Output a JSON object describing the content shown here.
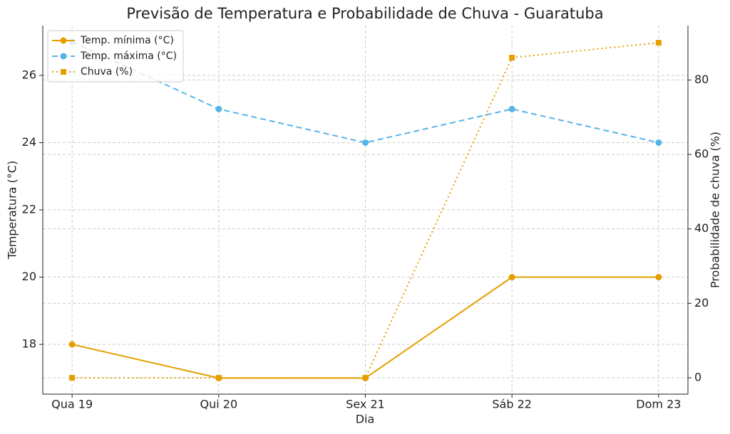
{
  "chart_data": {
    "type": "line",
    "title": "Previsão de Temperatura e Probabilidade de Chuva - Guaratuba",
    "x_label": "Dia",
    "y_label": "Temperatura (°C)",
    "y2_label": "Probabilidade de chuva (%)",
    "categories": [
      "Qua 19",
      "Qui 20",
      "Sex 21",
      "Sáb 22",
      "Dom 23"
    ],
    "series": [
      {
        "name": "Temp. mínima (°C)",
        "color": "#e69f00",
        "style": "solid",
        "marker": "circle",
        "values": [
          18,
          17,
          17,
          20,
          20
        ]
      },
      {
        "name": "Temp. máxima (°C)",
        "color": "#56b4e9",
        "style": "dashed",
        "marker": "circle",
        "values": [
          27,
          25,
          24,
          25,
          24
        ]
      },
      {
        "name": "Chuva (%)",
        "color": "#e69f00",
        "style": "dotted",
        "marker": "square",
        "axis": "y2",
        "values": [
          0,
          0,
          0,
          86,
          90
        ]
      }
    ],
    "ylim": [
      16.52,
      27.48
    ],
    "yticks": [
      18,
      20,
      22,
      24,
      26
    ],
    "y2lim": [
      -4.4,
      94.6
    ],
    "y2ticks": [
      0,
      20,
      40,
      60,
      80
    ],
    "grid": true,
    "legend": "upper-left"
  }
}
